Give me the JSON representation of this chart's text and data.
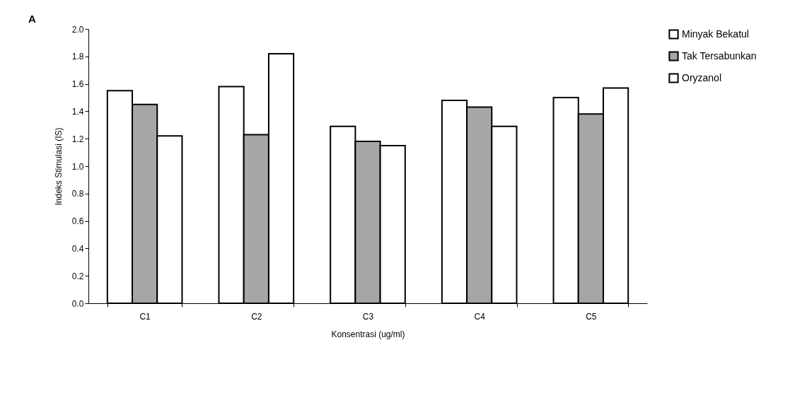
{
  "chart_data": {
    "type": "bar",
    "title": "A",
    "xlabel": "Konsentrasi (ug/ml)",
    "ylabel": "Indeks Stimulasi (IS)",
    "categories": [
      "C1",
      "C2",
      "C3",
      "C4",
      "C5"
    ],
    "series": [
      {
        "name": "Minyak Bekatul",
        "color": "#ffffff",
        "values": [
          1.55,
          1.58,
          1.29,
          1.48,
          1.5
        ]
      },
      {
        "name": "Tak Tersabunkan",
        "color": "#a6a6a6",
        "values": [
          1.45,
          1.23,
          1.18,
          1.43,
          1.38
        ]
      },
      {
        "name": "Oryzanol",
        "color": "#ffffff",
        "values": [
          1.22,
          1.82,
          1.15,
          1.29,
          1.57
        ]
      }
    ],
    "ylim": [
      0,
      2.0
    ],
    "yticks": [
      {
        "value": 0,
        "label": "0.0"
      },
      0.2,
      0.4,
      0.6,
      0.8,
      {
        "value": 1,
        "label": "1.0"
      },
      1.2,
      1.4,
      1.6,
      1.8,
      {
        "value": 2,
        "label": "2.0"
      }
    ],
    "grid": false,
    "legend": "right"
  }
}
